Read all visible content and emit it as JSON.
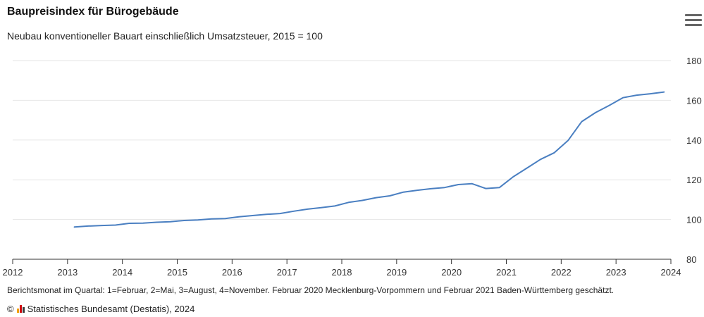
{
  "chart_data": {
    "type": "line",
    "title": "Baupreisindex für Bürogebäude",
    "subtitle": "Neubau konventioneller Bauart einschließlich Umsatzsteuer, 2015 = 100",
    "xlabel": "",
    "ylabel": "",
    "x_ticks": [
      "2012",
      "2013",
      "2014",
      "2015",
      "2016",
      "2017",
      "2018",
      "2019",
      "2020",
      "2021",
      "2022",
      "2023",
      "2024"
    ],
    "y_ticks": [
      80,
      100,
      120,
      140,
      160,
      180
    ],
    "xlim": [
      2012,
      2024
    ],
    "ylim": [
      80,
      180
    ],
    "grid": true,
    "series": [
      {
        "color": "#4a7fc1",
        "x": [
          2013.125,
          2013.375,
          2013.625,
          2013.875,
          2014.125,
          2014.375,
          2014.625,
          2014.875,
          2015.125,
          2015.375,
          2015.625,
          2015.875,
          2016.125,
          2016.375,
          2016.625,
          2016.875,
          2017.125,
          2017.375,
          2017.625,
          2017.875,
          2018.125,
          2018.375,
          2018.625,
          2018.875,
          2019.125,
          2019.375,
          2019.625,
          2019.875,
          2020.125,
          2020.375,
          2020.625,
          2020.875,
          2021.125,
          2021.375,
          2021.625,
          2021.875,
          2022.125,
          2022.375,
          2022.625,
          2022.875,
          2023.125,
          2023.375,
          2023.625,
          2023.875
        ],
        "values": [
          96.2,
          96.7,
          97.0,
          97.2,
          98.1,
          98.2,
          98.6,
          98.9,
          99.5,
          99.8,
          100.3,
          100.5,
          101.4,
          102.0,
          102.6,
          103.0,
          104.2,
          105.2,
          106.0,
          106.8,
          108.6,
          109.6,
          111.0,
          111.9,
          113.8,
          114.7,
          115.5,
          116.1,
          117.6,
          118.0,
          115.6,
          116.1,
          121.5,
          125.9,
          130.3,
          133.6,
          139.8,
          149.3,
          153.8,
          157.4,
          161.3,
          162.6,
          163.3,
          164.2
        ]
      }
    ]
  },
  "footnote": "Berichtsmonat im Quartal: 1=Februar, 2=Mai, 3=August, 4=November. Februar 2020 Mecklenburg-Vorpommern und Februar 2021 Baden-Württemberg geschätzt.",
  "credits": {
    "prefix": "©",
    "text": "Statistisches Bundesamt (Destatis), 2024",
    "logo_colors": [
      "#f0a100",
      "#d20a11",
      "#3a3a3a"
    ]
  },
  "menu_icon": "hamburger-menu-icon"
}
